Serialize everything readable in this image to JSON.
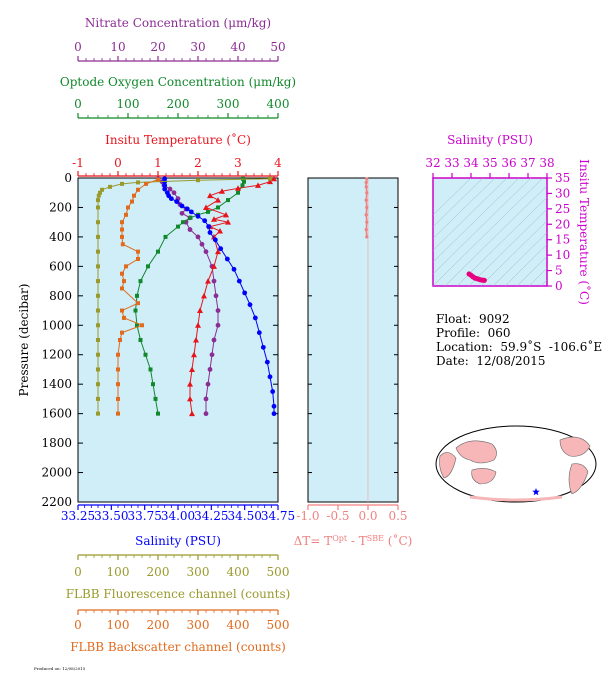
{
  "chart_data": [
    {
      "type": "line",
      "panel": "profile",
      "axes": {
        "nitrate": {
          "label": "Nitrate Concentration (μm/kg)",
          "range": [
            0,
            50
          ],
          "ticks": [
            "0",
            "10",
            "20",
            "30",
            "40",
            "50"
          ],
          "color": "#8b2d93"
        },
        "oxygen": {
          "label": "Optode Oxygen Concentration (μm/kg)",
          "range": [
            0,
            400
          ],
          "ticks": [
            "0",
            "100",
            "200",
            "300",
            "400"
          ],
          "color": "#11882b"
        },
        "temperature": {
          "label": "Insitu Temperature (˚C)",
          "range": [
            -1,
            4
          ],
          "ticks": [
            "-1",
            "0",
            "1",
            "2",
            "3",
            "4"
          ],
          "color": "#e8141c"
        },
        "pressure": {
          "label": "Pressure (decibar)",
          "range": [
            0,
            2200
          ],
          "ticks": [
            "0",
            "200",
            "400",
            "600",
            "800",
            "1000",
            "1200",
            "1400",
            "1600",
            "1800",
            "2000",
            "2200"
          ],
          "color": "#000000"
        },
        "salinity": {
          "label": "Salinity (PSU)",
          "range": [
            33.25,
            34.75
          ],
          "ticks": [
            "33.25",
            "33.50",
            "33.75",
            "34.00",
            "34.25",
            "34.50",
            "34.75"
          ],
          "color": "#0000ff"
        },
        "fluorescence": {
          "label": "FLBB Fluorescence channel (counts)",
          "range": [
            0,
            500
          ],
          "ticks": [
            "0",
            "100",
            "200",
            "300",
            "400",
            "500"
          ],
          "color": "#9a9a2c"
        },
        "backscatter": {
          "label": "FLBB Backscatter channel (counts)",
          "range": [
            0,
            500
          ],
          "ticks": [
            "0",
            "100",
            "200",
            "300",
            "400",
            "500"
          ],
          "color": "#e06b1f"
        }
      },
      "series": [
        {
          "name": "Nitrate Concentration",
          "axis": "nitrate",
          "color": "#8b2d93",
          "marker": "circle",
          "points": [
            [
              20,
              5
            ],
            [
              21,
              25
            ],
            [
              21.5,
              50
            ],
            [
              23,
              75
            ],
            [
              24,
              100
            ],
            [
              25,
              140
            ],
            [
              25.5,
              180
            ],
            [
              27,
              210
            ],
            [
              26,
              240
            ],
            [
              28,
              270
            ],
            [
              27,
              300
            ],
            [
              28,
              350
            ],
            [
              30,
              400
            ],
            [
              31,
              450
            ],
            [
              32,
              500
            ],
            [
              33.5,
              600
            ],
            [
              34,
              700
            ],
            [
              34.5,
              800
            ],
            [
              35,
              900
            ],
            [
              35,
              1000
            ],
            [
              34,
              1100
            ],
            [
              33.5,
              1200
            ],
            [
              33,
              1300
            ],
            [
              32.5,
              1400
            ],
            [
              32,
              1500
            ],
            [
              32,
              1600
            ]
          ]
        },
        {
          "name": "Optode Oxygen Concentration",
          "axis": "oxygen",
          "color": "#11882b",
          "marker": "square",
          "points": [
            [
              330,
              5
            ],
            [
              332,
              25
            ],
            [
              329,
              50
            ],
            [
              320,
              100
            ],
            [
              300,
              150
            ],
            [
              280,
              200
            ],
            [
              260,
              230
            ],
            [
              240,
              250
            ],
            [
              225,
              270
            ],
            [
              210,
              300
            ],
            [
              200,
              330
            ],
            [
              175,
              400
            ],
            [
              160,
              500
            ],
            [
              140,
              600
            ],
            [
              125,
              700
            ],
            [
              118,
              800
            ],
            [
              115,
              900
            ],
            [
              118,
              1000
            ],
            [
              125,
              1100
            ],
            [
              135,
              1200
            ],
            [
              145,
              1300
            ],
            [
              150,
              1400
            ],
            [
              155,
              1500
            ],
            [
              160,
              1600
            ]
          ]
        },
        {
          "name": "Insitu Temperature",
          "axis": "temperature",
          "color": "#e8141c",
          "marker": "triangle",
          "points": [
            [
              3.9,
              5
            ],
            [
              3.8,
              25
            ],
            [
              3.5,
              50
            ],
            [
              3.0,
              70
            ],
            [
              2.6,
              90
            ],
            [
              2.3,
              120
            ],
            [
              2.5,
              150
            ],
            [
              2.2,
              200
            ],
            [
              2.7,
              250
            ],
            [
              2.4,
              280
            ],
            [
              2.75,
              300
            ],
            [
              2.3,
              330
            ],
            [
              2.55,
              360
            ],
            [
              2.4,
              400
            ],
            [
              2.5,
              500
            ],
            [
              2.4,
              600
            ],
            [
              2.25,
              700
            ],
            [
              2.15,
              800
            ],
            [
              2.05,
              900
            ],
            [
              2.0,
              1000
            ],
            [
              1.95,
              1100
            ],
            [
              1.9,
              1200
            ],
            [
              1.85,
              1300
            ],
            [
              1.8,
              1400
            ],
            [
              1.8,
              1500
            ],
            [
              1.85,
              1600
            ]
          ]
        },
        {
          "name": "Salinity",
          "axis": "salinity",
          "color": "#0000ff",
          "marker": "circle",
          "points": [
            [
              33.9,
              5
            ],
            [
              33.9,
              25
            ],
            [
              33.9,
              50
            ],
            [
              33.9,
              75
            ],
            [
              33.92,
              100
            ],
            [
              33.93,
              120
            ],
            [
              33.95,
              140
            ],
            [
              33.99,
              160
            ],
            [
              34.03,
              190
            ],
            [
              34.07,
              210
            ],
            [
              34.1,
              230
            ],
            [
              34.15,
              260
            ],
            [
              34.2,
              290
            ],
            [
              34.23,
              330
            ],
            [
              34.24,
              370
            ],
            [
              34.28,
              420
            ],
            [
              34.32,
              480
            ],
            [
              34.37,
              550
            ],
            [
              34.42,
              620
            ],
            [
              34.46,
              700
            ],
            [
              34.5,
              780
            ],
            [
              34.54,
              860
            ],
            [
              34.58,
              950
            ],
            [
              34.61,
              1050
            ],
            [
              34.64,
              1150
            ],
            [
              34.67,
              1250
            ],
            [
              34.69,
              1350
            ],
            [
              34.71,
              1450
            ],
            [
              34.72,
              1550
            ],
            [
              34.72,
              1600
            ]
          ]
        },
        {
          "name": "FLBB Fluorescence",
          "axis": "fluorescence",
          "color": "#9a9a2c",
          "marker": "square",
          "points": [
            [
              480,
              5
            ],
            [
              300,
              15
            ],
            [
              150,
              30
            ],
            [
              110,
              40
            ],
            [
              80,
              60
            ],
            [
              60,
              80
            ],
            [
              55,
              100
            ],
            [
              52,
              120
            ],
            [
              50,
              150
            ],
            [
              50,
              200
            ],
            [
              50,
              300
            ],
            [
              50,
              400
            ],
            [
              50,
              500
            ],
            [
              50,
              600
            ],
            [
              50,
              700
            ],
            [
              50,
              800
            ],
            [
              50,
              900
            ],
            [
              50,
              1000
            ],
            [
              50,
              1100
            ],
            [
              50,
              1200
            ],
            [
              50,
              1300
            ],
            [
              50,
              1400
            ],
            [
              50,
              1500
            ],
            [
              50,
              1600
            ]
          ]
        },
        {
          "name": "FLBB Backscatter",
          "axis": "backscatter",
          "color": "#e06b1f",
          "marker": "square",
          "points": [
            [
              200,
              10
            ],
            [
              170,
              40
            ],
            [
              150,
              80
            ],
            [
              140,
              120
            ],
            [
              135,
              160
            ],
            [
              125,
              200
            ],
            [
              120,
              250
            ],
            [
              110,
              300
            ],
            [
              110,
              350
            ],
            [
              110,
              400
            ],
            [
              112,
              450
            ],
            [
              150,
              500
            ],
            [
              150,
              550
            ],
            [
              120,
              600
            ],
            [
              110,
              650
            ],
            [
              115,
              700
            ],
            [
              110,
              750
            ],
            [
              150,
              850
            ],
            [
              110,
              900
            ],
            [
              115,
              950
            ],
            [
              160,
              1000
            ],
            [
              110,
              1050
            ],
            [
              105,
              1100
            ],
            [
              100,
              1200
            ],
            [
              100,
              1300
            ],
            [
              100,
              1400
            ],
            [
              100,
              1500
            ],
            [
              100,
              1600
            ]
          ]
        }
      ]
    },
    {
      "type": "line",
      "panel": "temperature-difference",
      "xlabel_parts": [
        "ΔT= T",
        "Opt",
        " - T",
        "SBE",
        " (˚C)"
      ],
      "xlim": [
        -1.0,
        0.5
      ],
      "xticks": [
        "-1.0",
        "-0.5",
        "0.0",
        "0.5"
      ],
      "series": [
        {
          "color": "#f08080",
          "points": [
            [
              -0.02,
              5
            ],
            [
              -0.03,
              30
            ],
            [
              -0.03,
              60
            ],
            [
              -0.02,
              100
            ],
            [
              -0.03,
              150
            ],
            [
              -0.02,
              200
            ],
            [
              -0.03,
              250
            ],
            [
              -0.02,
              300
            ],
            [
              -0.03,
              350
            ],
            [
              -0.02,
              400
            ]
          ]
        }
      ]
    },
    {
      "type": "scatter",
      "panel": "theta-s",
      "xlabel": "Salinity (PSU)",
      "ylabel": "Insitu Temperature (˚C)",
      "xlim": [
        32,
        38
      ],
      "ylim": [
        0,
        35
      ],
      "xticks": [
        "32",
        "33",
        "34",
        "35",
        "36",
        "37",
        "38"
      ],
      "yticks": [
        "0",
        "5",
        "10",
        "15",
        "20",
        "25",
        "30",
        "35"
      ],
      "series": [
        {
          "color": "#e6007e",
          "points": [
            [
              33.9,
              3.9
            ],
            [
              34.0,
              3.5
            ],
            [
              34.1,
              3.0
            ],
            [
              34.2,
              2.6
            ],
            [
              34.3,
              2.4
            ],
            [
              34.4,
              2.2
            ],
            [
              34.5,
              2.0
            ],
            [
              34.6,
              1.9
            ],
            [
              34.7,
              1.85
            ]
          ]
        }
      ]
    }
  ],
  "float_info": {
    "float": "Float:  9092",
    "profile": "Profile:  060",
    "location": "Location:  59.9˚S  -106.6˚E",
    "date": "Date:  12/08/2015"
  },
  "map": {
    "marker_color": "#0000ff",
    "marker": "star"
  },
  "footer_text": "Produced on: 12/08/2015"
}
